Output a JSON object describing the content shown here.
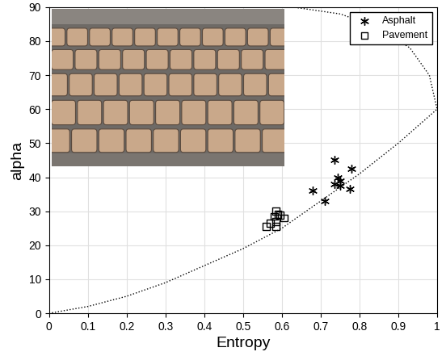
{
  "chart_data": {
    "type": "scatter",
    "x_label": "Entropy",
    "y_label": "alpha",
    "xlim": [
      0,
      1
    ],
    "ylim": [
      0,
      90
    ],
    "xticks": [
      0,
      0.1,
      0.2,
      0.3,
      0.4,
      0.5,
      0.6,
      0.7,
      0.8,
      0.9,
      1
    ],
    "yticks": [
      0,
      10,
      20,
      30,
      40,
      50,
      60,
      70,
      80,
      90
    ],
    "grid": true,
    "legend": "upper right",
    "series": [
      {
        "name": "Asphalt",
        "color": "#000000",
        "marker": "asterisk",
        "type": "scatter",
        "x": [
          0.735,
          0.78,
          0.745,
          0.75,
          0.735,
          0.75,
          0.68,
          0.775,
          0.71
        ],
        "values": [
          45,
          42.5,
          40,
          39,
          38,
          37.5,
          36,
          36.5,
          33
        ]
      },
      {
        "name": "Pavement",
        "color": "#000000",
        "marker": "square",
        "type": "scatter",
        "x": [
          0.585,
          0.595,
          0.58,
          0.605,
          0.585,
          0.57,
          0.56,
          0.585,
          0.59
        ],
        "values": [
          30,
          28.8,
          28.5,
          28,
          27,
          26.5,
          25.5,
          25.5,
          29
        ]
      },
      {
        "color": "#000000",
        "type": "line",
        "line_style": "dotted",
        "x": [
          0,
          0.1,
          0.2,
          0.3,
          0.4,
          0.5,
          0.6,
          0.7,
          0.8,
          0.9,
          0.95,
          1,
          0.98,
          0.93,
          0.85,
          0.75,
          0.63
        ],
        "values": [
          0,
          2,
          5,
          9,
          14,
          19,
          25,
          33,
          41,
          50,
          55,
          60,
          70,
          78,
          84,
          88,
          90
        ]
      }
    ]
  }
}
